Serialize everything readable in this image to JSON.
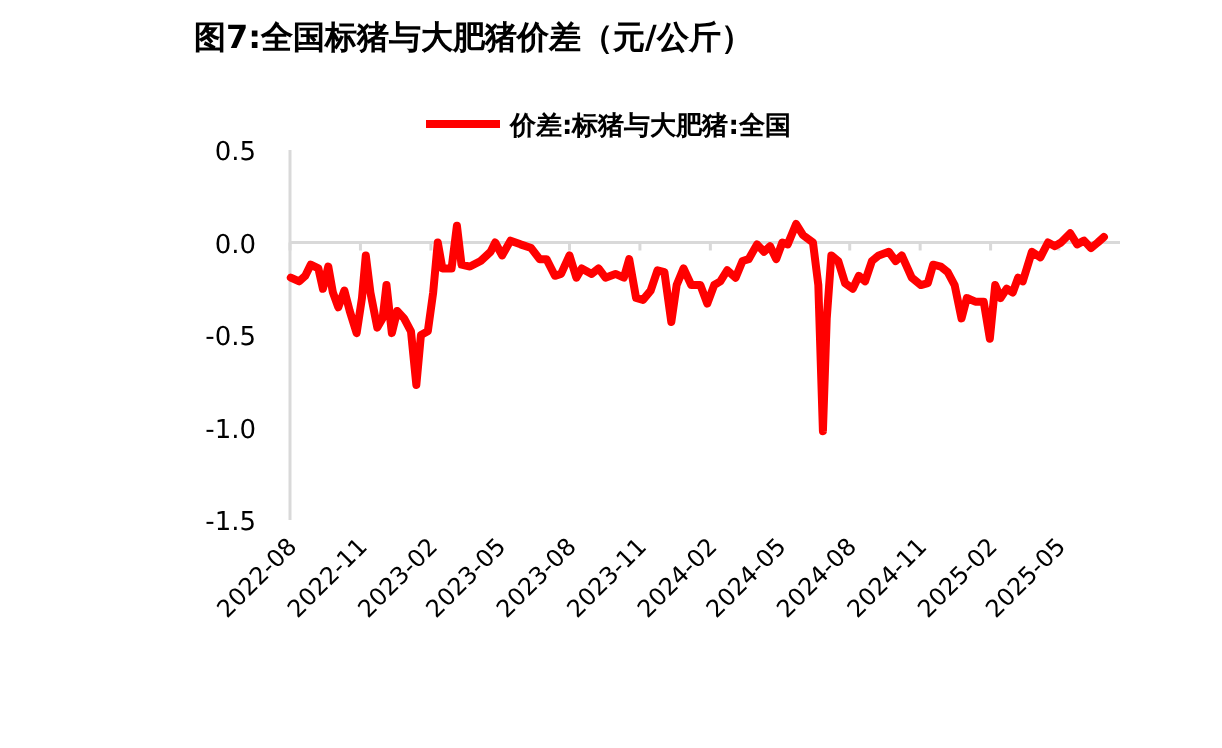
{
  "chart_data": {
    "type": "line",
    "title": "图7:全国标猪与大肥猪价差（元/公斤）",
    "x": [
      "2022-08-02",
      "2022-08-13",
      "2022-08-21",
      "2022-08-28",
      "2022-09-07",
      "2022-09-13",
      "2022-09-20",
      "2022-09-26",
      "2022-10-03",
      "2022-10-11",
      "2022-10-18",
      "2022-10-27",
      "2022-11-03",
      "2022-11-08",
      "2022-11-14",
      "2022-11-23",
      "2022-11-30",
      "2022-12-05",
      "2022-12-12",
      "2022-12-19",
      "2022-12-28",
      "2023-01-06",
      "2023-01-13",
      "2023-01-19",
      "2023-01-28",
      "2023-02-04",
      "2023-02-10",
      "2023-02-16",
      "2023-02-28",
      "2023-03-07",
      "2023-03-13",
      "2023-03-24",
      "2023-04-07",
      "2023-04-20",
      "2023-04-26",
      "2023-05-05",
      "2023-05-16",
      "2023-05-29",
      "2023-06-12",
      "2023-06-23",
      "2023-07-02",
      "2023-07-13",
      "2023-07-21",
      "2023-08-01",
      "2023-08-10",
      "2023-08-17",
      "2023-08-30",
      "2023-09-08",
      "2023-09-17",
      "2023-09-30",
      "2023-10-11",
      "2023-10-18",
      "2023-10-27",
      "2023-11-05",
      "2023-11-15",
      "2023-11-24",
      "2023-12-03",
      "2023-12-12",
      "2023-12-19",
      "2023-12-28",
      "2024-01-07",
      "2024-01-19",
      "2024-01-28",
      "2024-02-06",
      "2024-02-14",
      "2024-02-23",
      "2024-03-05",
      "2024-03-14",
      "2024-03-22",
      "2024-04-02",
      "2024-04-11",
      "2024-04-19",
      "2024-04-27",
      "2024-05-05",
      "2024-05-12",
      "2024-05-23",
      "2024-06-01",
      "2024-06-14",
      "2024-06-21",
      "2024-06-27",
      "2024-07-02",
      "2024-07-08",
      "2024-07-17",
      "2024-07-26",
      "2024-08-05",
      "2024-08-13",
      "2024-08-21",
      "2024-08-30",
      "2024-09-08",
      "2024-09-21",
      "2024-09-30",
      "2024-10-08",
      "2024-10-21",
      "2024-11-02",
      "2024-11-11",
      "2024-11-18",
      "2024-11-28",
      "2024-12-07",
      "2024-12-16",
      "2024-12-25",
      "2025-01-01",
      "2025-01-12",
      "2025-01-23",
      "2025-01-31",
      "2025-02-07",
      "2025-02-14",
      "2025-02-22",
      "2025-03-02",
      "2025-03-09",
      "2025-03-15",
      "2025-03-27",
      "2025-04-07",
      "2025-04-17",
      "2025-04-26",
      "2025-05-04",
      "2025-05-16",
      "2025-05-25",
      "2025-06-03",
      "2025-06-12",
      "2025-06-21",
      "2025-06-29"
    ],
    "series": [
      {
        "name": "价差:标猪与大肥猪:全国",
        "color": "#ff0000",
        "values": [
          -0.19,
          -0.21,
          -0.18,
          -0.12,
          -0.14,
          -0.25,
          -0.13,
          -0.27,
          -0.35,
          -0.26,
          -0.37,
          -0.49,
          -0.3,
          -0.07,
          -0.27,
          -0.46,
          -0.41,
          -0.23,
          -0.49,
          -0.37,
          -0.41,
          -0.48,
          -0.77,
          -0.5,
          -0.48,
          -0.27,
          0.0,
          -0.14,
          -0.14,
          0.09,
          -0.12,
          -0.13,
          -0.1,
          -0.05,
          0.0,
          -0.07,
          0.01,
          -0.01,
          -0.03,
          -0.09,
          -0.09,
          -0.18,
          -0.17,
          -0.07,
          -0.19,
          -0.14,
          -0.17,
          -0.14,
          -0.19,
          -0.17,
          -0.19,
          -0.09,
          -0.3,
          -0.31,
          -0.26,
          -0.15,
          -0.16,
          -0.43,
          -0.23,
          -0.14,
          -0.23,
          -0.23,
          -0.33,
          -0.23,
          -0.21,
          -0.15,
          -0.19,
          -0.1,
          -0.09,
          -0.01,
          -0.05,
          -0.02,
          -0.09,
          0.0,
          -0.01,
          0.1,
          0.04,
          0.0,
          -0.23,
          -1.02,
          -0.41,
          -0.07,
          -0.1,
          -0.22,
          -0.25,
          -0.18,
          -0.21,
          -0.1,
          -0.07,
          -0.05,
          -0.1,
          -0.07,
          -0.19,
          -0.23,
          -0.22,
          -0.12,
          -0.13,
          -0.16,
          -0.23,
          -0.41,
          -0.3,
          -0.32,
          -0.32,
          -0.52,
          -0.23,
          -0.3,
          -0.25,
          -0.27,
          -0.19,
          -0.21,
          -0.05,
          -0.08,
          0.0,
          -0.02,
          0.0,
          0.05,
          -0.01,
          0.01,
          -0.03,
          0.0,
          0.03
        ]
      }
    ],
    "xlim": [
      "2022-08-01",
      "2025-07-20"
    ],
    "xticks": [
      "2022-08",
      "2022-11",
      "2023-02",
      "2023-05",
      "2023-08",
      "2023-11",
      "2024-02",
      "2024-05",
      "2024-08",
      "2024-11",
      "2025-02",
      "2025-05"
    ],
    "ylim": [
      -1.5,
      0.5
    ],
    "yticks": [
      {
        "value": -1.5,
        "label": "-1.5"
      },
      {
        "value": -1.0,
        "label": "-1.0"
      },
      {
        "value": -0.5,
        "label": "-0.5"
      },
      {
        "value": 0.0,
        "label": "0.0"
      },
      {
        "value": 0.5,
        "label": "0.5"
      }
    ],
    "legend": "top",
    "marker": "none",
    "line_style": "solid"
  }
}
